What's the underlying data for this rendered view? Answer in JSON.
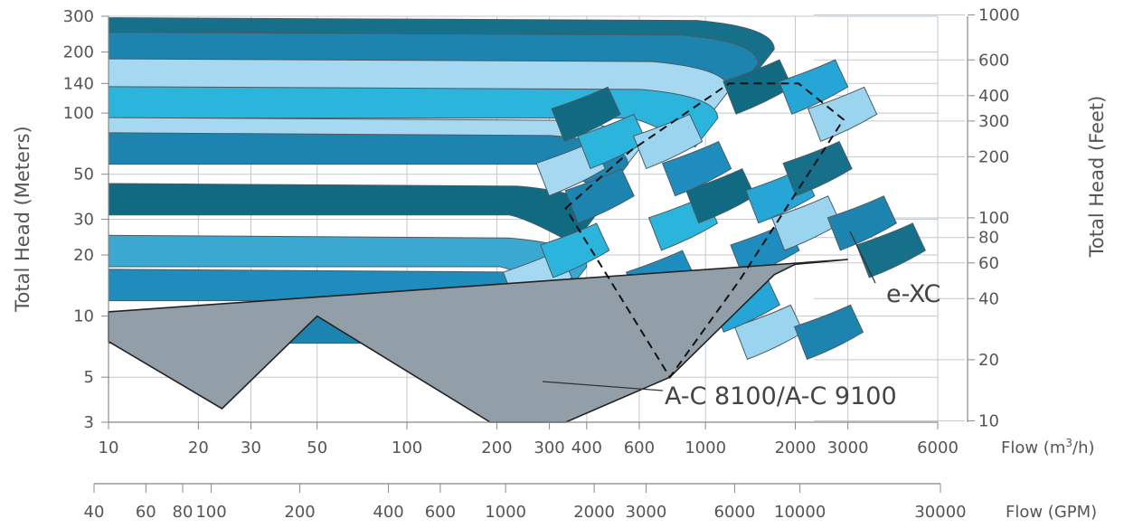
{
  "chart_data": {
    "type": "area",
    "xlabel_primary": "Flow (m³/h)",
    "xlabel_secondary": "Flow (GPM)",
    "ylabel_left": "Total Head (Meters)",
    "ylabel_right": "Total Head (Feet)",
    "x_scale": "log",
    "y_scale": "log",
    "xlim_m3h": [
      10,
      6000
    ],
    "ylim_m": [
      3,
      300
    ],
    "x_ticks_m3h": [
      10,
      20,
      30,
      50,
      100,
      200,
      300,
      400,
      600,
      1000,
      2000,
      3000,
      6000
    ],
    "x_ticks_gpm": [
      40,
      60,
      80,
      100,
      200,
      400,
      600,
      1000,
      2000,
      3000,
      6000,
      10000,
      30000
    ],
    "y_ticks_m": [
      3,
      5,
      10,
      20,
      30,
      50,
      100,
      140,
      200,
      300
    ],
    "y_ticks_ft": [
      10,
      20,
      40,
      60,
      80,
      100,
      200,
      300,
      400,
      600,
      1000
    ],
    "grid": true,
    "series": [
      {
        "name": "A-C 8100/A-C 9100",
        "label": "A-C 8100/A-C 9100",
        "color": "#929fa8",
        "outline": [
          [
            10,
            7.5
          ],
          [
            24,
            3.5
          ],
          [
            50,
            10
          ],
          [
            190,
            3
          ],
          [
            340,
            3
          ],
          [
            760,
            5
          ],
          [
            1700,
            16
          ],
          [
            2000,
            18
          ],
          [
            3000,
            19
          ],
          [
            10,
            10.5
          ]
        ]
      },
      {
        "name": "e-XC",
        "label": "e-XC",
        "color": "#0f6a82",
        "outline": [
          [
            340,
            34
          ],
          [
            560,
            65
          ],
          [
            1200,
            140
          ],
          [
            2050,
            140
          ],
          [
            2900,
            93
          ],
          [
            1300,
            15
          ],
          [
            760,
            5
          ]
        ]
      }
    ]
  }
}
